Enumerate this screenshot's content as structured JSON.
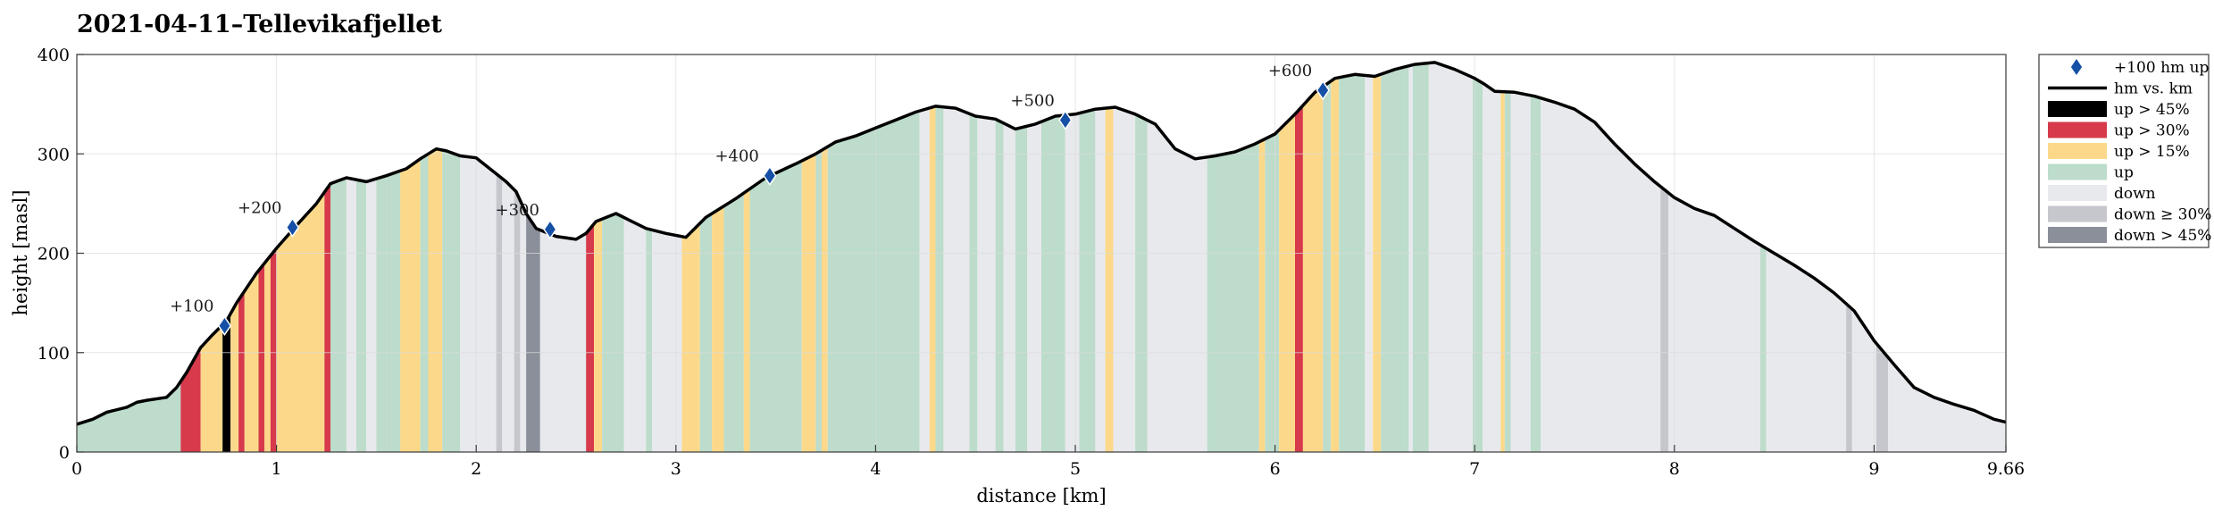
{
  "chart_data": {
    "type": "area",
    "title": "2021-04-11–Tellevikafjellet",
    "xlabel": "distance [km]",
    "ylabel": "height [masl]",
    "xlim": [
      0,
      9.66
    ],
    "ylim": [
      0,
      400
    ],
    "xticks": [
      0,
      1,
      2,
      3,
      4,
      5,
      6,
      7,
      8,
      9,
      9.66
    ],
    "xtick_labels": [
      "0",
      "1",
      "2",
      "3",
      "4",
      "5",
      "6",
      "7",
      "8",
      "9",
      "9.66"
    ],
    "yticks": [
      0,
      100,
      200,
      300,
      400
    ],
    "ytick_labels": [
      "0",
      "100",
      "200",
      "300",
      "400"
    ],
    "grid": true,
    "legend_position": "outside-right",
    "colors": {
      "up_gt_45": "#000000",
      "up_gt_30": "#d63a4b",
      "up_gt_15": "#fcd98a",
      "up": "#bddccb",
      "down": "#e8e9ed",
      "down_ge_30": "#c6c7cd",
      "down_gt_45": "#8a8f9a",
      "profile_line": "#000000",
      "marker": "#1550a6",
      "grid": "#dcdcdc"
    },
    "legend": [
      {
        "key": "marker",
        "label": "+100 hm up"
      },
      {
        "key": "line",
        "label": "hm vs. km"
      },
      {
        "key": "up_gt_45",
        "label": "up > 45%"
      },
      {
        "key": "up_gt_30",
        "label": "up > 30%"
      },
      {
        "key": "up_gt_15",
        "label": "up > 15%"
      },
      {
        "key": "up",
        "label": "up"
      },
      {
        "key": "down",
        "label": "down"
      },
      {
        "key": "down_ge_30",
        "label": "down ≥ 30%"
      },
      {
        "key": "down_gt_45",
        "label": "down > 45%"
      }
    ],
    "profile": {
      "x": [
        0,
        0.08,
        0.15,
        0.25,
        0.3,
        0.35,
        0.45,
        0.5,
        0.55,
        0.62,
        0.68,
        0.75,
        0.8,
        0.9,
        1.0,
        1.1,
        1.2,
        1.27,
        1.35,
        1.45,
        1.55,
        1.65,
        1.72,
        1.8,
        1.85,
        1.92,
        2.0,
        2.1,
        2.15,
        2.2,
        2.25,
        2.3,
        2.4,
        2.5,
        2.55,
        2.6,
        2.7,
        2.78,
        2.85,
        2.95,
        3.05,
        3.15,
        3.3,
        3.45,
        3.6,
        3.7,
        3.8,
        3.9,
        4.0,
        4.1,
        4.2,
        4.3,
        4.4,
        4.5,
        4.6,
        4.7,
        4.8,
        4.9,
        5.0,
        5.1,
        5.2,
        5.3,
        5.4,
        5.5,
        5.6,
        5.7,
        5.8,
        5.9,
        6.0,
        6.1,
        6.2,
        6.3,
        6.4,
        6.5,
        6.6,
        6.7,
        6.8,
        6.9,
        7.0,
        7.05,
        7.1,
        7.2,
        7.3,
        7.4,
        7.5,
        7.6,
        7.7,
        7.8,
        7.9,
        8.0,
        8.1,
        8.2,
        8.3,
        8.4,
        8.5,
        8.6,
        8.7,
        8.8,
        8.9,
        9.0,
        9.1,
        9.2,
        9.3,
        9.4,
        9.5,
        9.6,
        9.66
      ],
      "y": [
        28,
        33,
        40,
        45,
        50,
        52,
        55,
        65,
        80,
        105,
        118,
        132,
        150,
        180,
        205,
        228,
        250,
        270,
        276,
        272,
        278,
        285,
        295,
        305,
        303,
        298,
        296,
        280,
        272,
        262,
        240,
        225,
        217,
        214,
        220,
        232,
        240,
        232,
        225,
        220,
        216,
        236,
        255,
        276,
        290,
        300,
        312,
        318,
        326,
        334,
        342,
        348,
        346,
        338,
        335,
        325,
        330,
        338,
        340,
        345,
        347,
        340,
        330,
        305,
        295,
        298,
        302,
        310,
        320,
        340,
        362,
        376,
        380,
        378,
        385,
        390,
        392,
        385,
        376,
        370,
        363,
        362,
        358,
        352,
        345,
        332,
        310,
        290,
        272,
        256,
        245,
        238,
        225,
        212,
        200,
        188,
        175,
        160,
        142,
        112,
        88,
        65,
        55,
        48,
        42,
        33,
        30
      ]
    },
    "segments": [
      {
        "x0": 0,
        "x1": 0.52,
        "type": "up"
      },
      {
        "x0": 0.52,
        "x1": 0.62,
        "type": "up_gt_30"
      },
      {
        "x0": 0.62,
        "x1": 0.73,
        "type": "up_gt_15"
      },
      {
        "x0": 0.73,
        "x1": 0.77,
        "type": "up_gt_45"
      },
      {
        "x0": 0.77,
        "x1": 0.81,
        "type": "up_gt_15"
      },
      {
        "x0": 0.81,
        "x1": 0.84,
        "type": "up_gt_30"
      },
      {
        "x0": 0.84,
        "x1": 0.91,
        "type": "up_gt_15"
      },
      {
        "x0": 0.91,
        "x1": 0.94,
        "type": "up_gt_30"
      },
      {
        "x0": 0.94,
        "x1": 0.97,
        "type": "up_gt_15"
      },
      {
        "x0": 0.97,
        "x1": 1.0,
        "type": "up_gt_30"
      },
      {
        "x0": 1.0,
        "x1": 1.24,
        "type": "up_gt_15"
      },
      {
        "x0": 1.24,
        "x1": 1.27,
        "type": "up_gt_30"
      },
      {
        "x0": 1.27,
        "x1": 1.35,
        "type": "up"
      },
      {
        "x0": 1.35,
        "x1": 1.4,
        "type": "down"
      },
      {
        "x0": 1.4,
        "x1": 1.45,
        "type": "up"
      },
      {
        "x0": 1.45,
        "x1": 1.5,
        "type": "down"
      },
      {
        "x0": 1.5,
        "x1": 1.55,
        "type": "up"
      },
      {
        "x0": 1.55,
        "x1": 1.62,
        "type": "up"
      },
      {
        "x0": 1.62,
        "x1": 1.72,
        "type": "up_gt_15"
      },
      {
        "x0": 1.72,
        "x1": 1.76,
        "type": "up"
      },
      {
        "x0": 1.76,
        "x1": 1.83,
        "type": "up_gt_15"
      },
      {
        "x0": 1.83,
        "x1": 1.92,
        "type": "up"
      },
      {
        "x0": 1.92,
        "x1": 2.1,
        "type": "down"
      },
      {
        "x0": 2.1,
        "x1": 2.13,
        "type": "down_ge_30"
      },
      {
        "x0": 2.13,
        "x1": 2.19,
        "type": "down"
      },
      {
        "x0": 2.19,
        "x1": 2.22,
        "type": "down_ge_30"
      },
      {
        "x0": 2.22,
        "x1": 2.25,
        "type": "down"
      },
      {
        "x0": 2.25,
        "x1": 2.32,
        "type": "down_gt_45"
      },
      {
        "x0": 2.32,
        "x1": 2.55,
        "type": "down"
      },
      {
        "x0": 2.55,
        "x1": 2.59,
        "type": "up_gt_30"
      },
      {
        "x0": 2.59,
        "x1": 2.63,
        "type": "up_gt_15"
      },
      {
        "x0": 2.63,
        "x1": 2.74,
        "type": "up"
      },
      {
        "x0": 2.74,
        "x1": 2.85,
        "type": "down"
      },
      {
        "x0": 2.85,
        "x1": 2.88,
        "type": "up"
      },
      {
        "x0": 2.88,
        "x1": 3.03,
        "type": "down"
      },
      {
        "x0": 3.03,
        "x1": 3.12,
        "type": "up_gt_15"
      },
      {
        "x0": 3.12,
        "x1": 3.18,
        "type": "up"
      },
      {
        "x0": 3.18,
        "x1": 3.24,
        "type": "up_gt_15"
      },
      {
        "x0": 3.24,
        "x1": 3.34,
        "type": "up"
      },
      {
        "x0": 3.34,
        "x1": 3.37,
        "type": "up_gt_15"
      },
      {
        "x0": 3.37,
        "x1": 3.63,
        "type": "up"
      },
      {
        "x0": 3.63,
        "x1": 3.7,
        "type": "up_gt_15"
      },
      {
        "x0": 3.7,
        "x1": 3.73,
        "type": "up"
      },
      {
        "x0": 3.73,
        "x1": 3.76,
        "type": "up_gt_15"
      },
      {
        "x0": 3.76,
        "x1": 4.22,
        "type": "up"
      },
      {
        "x0": 4.22,
        "x1": 4.27,
        "type": "down"
      },
      {
        "x0": 4.27,
        "x1": 4.3,
        "type": "up_gt_15"
      },
      {
        "x0": 4.3,
        "x1": 4.34,
        "type": "up"
      },
      {
        "x0": 4.34,
        "x1": 4.47,
        "type": "down"
      },
      {
        "x0": 4.47,
        "x1": 4.51,
        "type": "up"
      },
      {
        "x0": 4.51,
        "x1": 4.6,
        "type": "down"
      },
      {
        "x0": 4.6,
        "x1": 4.64,
        "type": "up"
      },
      {
        "x0": 4.64,
        "x1": 4.7,
        "type": "down"
      },
      {
        "x0": 4.7,
        "x1": 4.76,
        "type": "up"
      },
      {
        "x0": 4.76,
        "x1": 4.83,
        "type": "down"
      },
      {
        "x0": 4.83,
        "x1": 4.95,
        "type": "up"
      },
      {
        "x0": 4.95,
        "x1": 5.02,
        "type": "down"
      },
      {
        "x0": 5.02,
        "x1": 5.1,
        "type": "up"
      },
      {
        "x0": 5.1,
        "x1": 5.15,
        "type": "down"
      },
      {
        "x0": 5.15,
        "x1": 5.19,
        "type": "up_gt_15"
      },
      {
        "x0": 5.19,
        "x1": 5.3,
        "type": "down"
      },
      {
        "x0": 5.3,
        "x1": 5.36,
        "type": "up"
      },
      {
        "x0": 5.36,
        "x1": 5.66,
        "type": "down"
      },
      {
        "x0": 5.66,
        "x1": 5.92,
        "type": "up"
      },
      {
        "x0": 5.92,
        "x1": 5.95,
        "type": "up_gt_15"
      },
      {
        "x0": 5.95,
        "x1": 6.02,
        "type": "up"
      },
      {
        "x0": 6.02,
        "x1": 6.1,
        "type": "up_gt_15"
      },
      {
        "x0": 6.1,
        "x1": 6.14,
        "type": "up_gt_30"
      },
      {
        "x0": 6.14,
        "x1": 6.24,
        "type": "up_gt_15"
      },
      {
        "x0": 6.24,
        "x1": 6.28,
        "type": "up"
      },
      {
        "x0": 6.28,
        "x1": 6.32,
        "type": "up_gt_15"
      },
      {
        "x0": 6.32,
        "x1": 6.45,
        "type": "up"
      },
      {
        "x0": 6.45,
        "x1": 6.49,
        "type": "down"
      },
      {
        "x0": 6.49,
        "x1": 6.53,
        "type": "up_gt_15"
      },
      {
        "x0": 6.53,
        "x1": 6.67,
        "type": "up"
      },
      {
        "x0": 6.67,
        "x1": 6.69,
        "type": "down"
      },
      {
        "x0": 6.69,
        "x1": 6.77,
        "type": "up"
      },
      {
        "x0": 6.77,
        "x1": 6.99,
        "type": "down"
      },
      {
        "x0": 6.99,
        "x1": 7.04,
        "type": "up"
      },
      {
        "x0": 7.04,
        "x1": 7.13,
        "type": "down"
      },
      {
        "x0": 7.13,
        "x1": 7.15,
        "type": "up_gt_15"
      },
      {
        "x0": 7.15,
        "x1": 7.18,
        "type": "up"
      },
      {
        "x0": 7.18,
        "x1": 7.28,
        "type": "down"
      },
      {
        "x0": 7.28,
        "x1": 7.33,
        "type": "up"
      },
      {
        "x0": 7.33,
        "x1": 7.93,
        "type": "down"
      },
      {
        "x0": 7.93,
        "x1": 7.97,
        "type": "down_ge_30"
      },
      {
        "x0": 7.97,
        "x1": 8.43,
        "type": "down"
      },
      {
        "x0": 8.43,
        "x1": 8.46,
        "type": "up"
      },
      {
        "x0": 8.46,
        "x1": 8.86,
        "type": "down"
      },
      {
        "x0": 8.86,
        "x1": 8.89,
        "type": "down_ge_30"
      },
      {
        "x0": 8.89,
        "x1": 9.01,
        "type": "down"
      },
      {
        "x0": 9.01,
        "x1": 9.07,
        "type": "down_ge_30"
      },
      {
        "x0": 9.07,
        "x1": 9.66,
        "type": "down"
      }
    ],
    "markers": [
      {
        "x": 0.74,
        "y": 127,
        "label": "+100"
      },
      {
        "x": 1.08,
        "y": 226,
        "label": "+200"
      },
      {
        "x": 2.37,
        "y": 224,
        "label": "+300"
      },
      {
        "x": 3.47,
        "y": 278,
        "label": "+400"
      },
      {
        "x": 4.95,
        "y": 334,
        "label": "+500"
      },
      {
        "x": 6.24,
        "y": 364,
        "label": "+600"
      }
    ]
  }
}
